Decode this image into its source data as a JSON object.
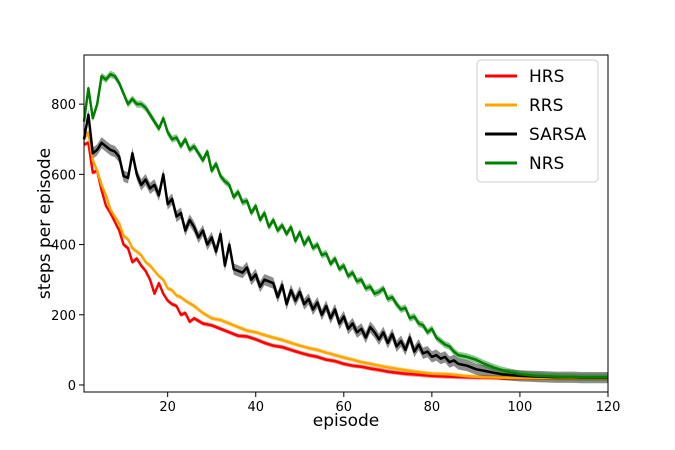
{
  "chart_data": {
    "type": "line",
    "title": "",
    "xlabel": "episode",
    "ylabel": "steps per episode",
    "xlim": [
      1,
      120
    ],
    "ylim": [
      -20,
      940
    ],
    "xticks": [
      20,
      40,
      60,
      80,
      100,
      120
    ],
    "yticks": [
      0,
      200,
      400,
      600,
      800
    ],
    "grid": false,
    "legend_position": "top-right",
    "series": [
      {
        "name": "HRS",
        "color": "#ff0000",
        "band": 6,
        "x": [
          1,
          2,
          3,
          4,
          5,
          6,
          7,
          8,
          9,
          10,
          11,
          12,
          13,
          14,
          15,
          16,
          17,
          18,
          19,
          20,
          21,
          22,
          23,
          24,
          25,
          26,
          28,
          30,
          32,
          34,
          36,
          38,
          40,
          42,
          44,
          46,
          48,
          50,
          52,
          54,
          56,
          58,
          60,
          62,
          64,
          66,
          68,
          70,
          72,
          74,
          76,
          78,
          80,
          84,
          88,
          92,
          96,
          100,
          104,
          108,
          112,
          116,
          120
        ],
        "values": [
          685,
          690,
          605,
          610,
          555,
          510,
          490,
          465,
          440,
          400,
          390,
          350,
          360,
          340,
          325,
          300,
          260,
          290,
          260,
          240,
          230,
          225,
          200,
          205,
          180,
          190,
          175,
          170,
          160,
          150,
          140,
          138,
          130,
          120,
          112,
          108,
          100,
          92,
          85,
          80,
          72,
          68,
          60,
          55,
          52,
          47,
          43,
          38,
          35,
          32,
          30,
          28,
          26,
          24,
          22,
          21,
          20,
          20,
          20,
          20,
          20,
          20,
          20
        ]
      },
      {
        "name": "RRS",
        "color": "#ffa500",
        "band": 6,
        "x": [
          1,
          2,
          3,
          4,
          5,
          6,
          7,
          8,
          9,
          10,
          11,
          12,
          13,
          14,
          15,
          16,
          17,
          18,
          19,
          20,
          21,
          22,
          23,
          24,
          26,
          28,
          30,
          32,
          34,
          36,
          38,
          40,
          42,
          44,
          46,
          48,
          50,
          52,
          54,
          56,
          58,
          60,
          62,
          64,
          66,
          68,
          70,
          72,
          74,
          76,
          78,
          80,
          84,
          88,
          92,
          96,
          100,
          104,
          108,
          112,
          116,
          120
        ],
        "values": [
          700,
          720,
          640,
          610,
          570,
          540,
          500,
          480,
          460,
          425,
          415,
          390,
          380,
          370,
          350,
          340,
          325,
          310,
          300,
          275,
          270,
          255,
          250,
          240,
          225,
          205,
          190,
          185,
          175,
          165,
          155,
          150,
          142,
          135,
          128,
          120,
          112,
          105,
          100,
          92,
          85,
          78,
          72,
          65,
          60,
          55,
          50,
          46,
          42,
          38,
          35,
          32,
          30,
          25,
          22,
          21,
          20,
          20,
          20,
          20,
          20,
          20
        ]
      },
      {
        "name": "SARSA",
        "color": "#000000",
        "band": 16,
        "x": [
          1,
          2,
          3,
          4,
          5,
          6,
          7,
          8,
          9,
          10,
          11,
          12,
          13,
          14,
          15,
          16,
          17,
          18,
          19,
          20,
          21,
          22,
          23,
          24,
          25,
          26,
          27,
          28,
          29,
          30,
          31,
          32,
          33,
          34,
          35,
          36,
          37,
          38,
          39,
          40,
          41,
          42,
          43,
          44,
          45,
          46,
          47,
          48,
          49,
          50,
          51,
          52,
          53,
          54,
          55,
          56,
          57,
          58,
          59,
          60,
          61,
          62,
          63,
          64,
          65,
          66,
          67,
          68,
          69,
          70,
          71,
          72,
          73,
          74,
          75,
          76,
          77,
          78,
          79,
          80,
          81,
          82,
          83,
          84,
          85,
          86,
          88,
          90,
          92,
          94,
          96,
          98,
          100,
          102,
          104,
          106,
          108,
          110,
          112,
          114,
          116,
          118,
          120
        ],
        "values": [
          700,
          770,
          660,
          670,
          690,
          680,
          670,
          665,
          650,
          595,
          590,
          660,
          600,
          570,
          585,
          560,
          570,
          540,
          600,
          515,
          530,
          480,
          490,
          440,
          470,
          450,
          420,
          440,
          400,
          420,
          380,
          430,
          340,
          400,
          330,
          325,
          320,
          335,
          300,
          315,
          280,
          300,
          295,
          290,
          250,
          285,
          230,
          270,
          240,
          265,
          230,
          245,
          215,
          235,
          200,
          225,
          190,
          215,
          175,
          195,
          160,
          175,
          150,
          160,
          135,
          165,
          150,
          130,
          150,
          120,
          145,
          110,
          125,
          100,
          135,
          95,
          115,
          90,
          95,
          80,
          85,
          75,
          80,
          65,
          70,
          60,
          55,
          45,
          40,
          35,
          30,
          28,
          26,
          25,
          24,
          23,
          22,
          22,
          22,
          21,
          21,
          21,
          21
        ]
      },
      {
        "name": "NRS",
        "color": "#008000",
        "band": 10,
        "x": [
          1,
          2,
          3,
          4,
          5,
          6,
          7,
          8,
          9,
          10,
          11,
          12,
          13,
          14,
          15,
          16,
          17,
          18,
          19,
          20,
          21,
          22,
          23,
          24,
          25,
          26,
          27,
          28,
          29,
          30,
          31,
          32,
          33,
          34,
          35,
          36,
          37,
          38,
          39,
          40,
          41,
          42,
          43,
          44,
          45,
          46,
          47,
          48,
          49,
          50,
          51,
          52,
          53,
          54,
          55,
          56,
          57,
          58,
          59,
          60,
          61,
          62,
          63,
          64,
          65,
          66,
          67,
          68,
          69,
          70,
          71,
          72,
          73,
          74,
          75,
          76,
          77,
          78,
          79,
          80,
          81,
          82,
          83,
          84,
          85,
          86,
          88,
          90,
          92,
          94,
          96,
          98,
          100,
          102,
          104,
          106,
          108,
          110,
          112,
          114,
          116,
          118,
          120
        ],
        "values": [
          750,
          845,
          760,
          800,
          880,
          870,
          885,
          880,
          860,
          830,
          800,
          815,
          800,
          800,
          790,
          770,
          750,
          730,
          760,
          720,
          700,
          705,
          680,
          700,
          670,
          680,
          660,
          640,
          665,
          610,
          630,
          595,
          580,
          570,
          535,
          550,
          520,
          525,
          490,
          510,
          470,
          490,
          450,
          470,
          440,
          455,
          430,
          450,
          410,
          435,
          400,
          420,
          390,
          400,
          370,
          375,
          345,
          360,
          330,
          340,
          310,
          320,
          295,
          300,
          275,
          280,
          260,
          265,
          275,
          245,
          250,
          230,
          215,
          220,
          190,
          195,
          175,
          170,
          150,
          160,
          135,
          125,
          115,
          110,
          95,
          85,
          80,
          72,
          60,
          50,
          42,
          36,
          31,
          28,
          26,
          25,
          24,
          23,
          23,
          22,
          22,
          22,
          22
        ]
      }
    ]
  }
}
